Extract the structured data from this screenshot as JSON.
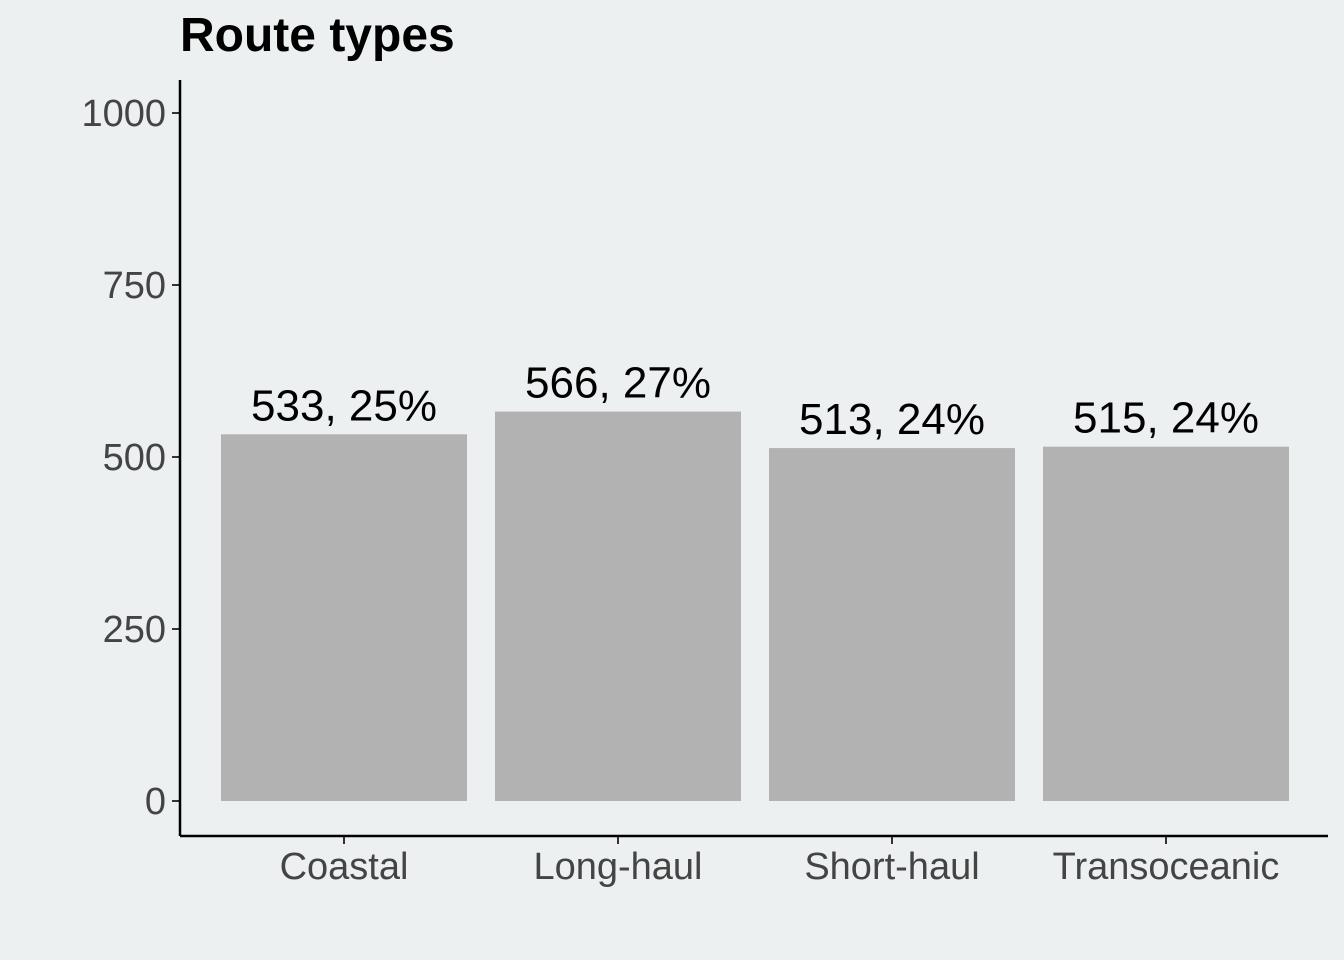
{
  "chart_data": {
    "type": "bar",
    "title": "Route types",
    "xlabel": "",
    "ylabel": "",
    "categories": [
      "Coastal",
      "Long-haul",
      "Short-haul",
      "Transoceanic"
    ],
    "values": [
      533,
      566,
      513,
      515
    ],
    "data_labels": [
      "533, 25%",
      "566, 27%",
      "513, 24%",
      "515, 24%"
    ],
    "ylim": [
      0,
      1050
    ],
    "yticks": [
      0,
      250,
      500,
      750,
      1000
    ],
    "grid": false,
    "legend": "none",
    "colors": {
      "bar": "#b2b2b2",
      "background": "#ecf0f1",
      "axis": "#000000",
      "tick_text": "#444444"
    }
  }
}
